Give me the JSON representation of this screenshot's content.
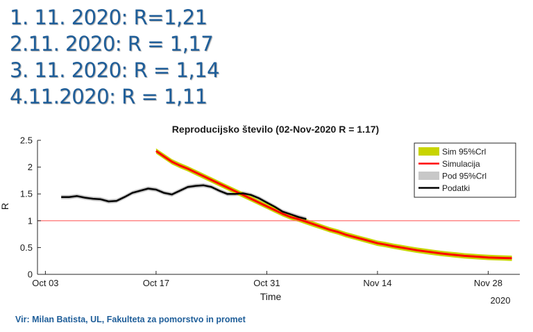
{
  "headlines": [
    "1. 11. 2020: R=1,21",
    "2.11. 2020: R = 1,17",
    "3. 11. 2020: R = 1,14",
    "4.11.2020: R = 1,11"
  ],
  "source_note": "Vir: Milan Batista, UL, Fakulteta za pomorstvo in promet",
  "chart_data": {
    "type": "line",
    "title": "Reproducijsko število (02-Nov-2020 R = 1.17)",
    "xlabel": "Time",
    "ylabel": "R",
    "x_year_label": "2020",
    "x_ticks": [
      "Oct 03",
      "Oct 17",
      "Oct 31",
      "Nov 14",
      "Nov 28"
    ],
    "x_tick_days": [
      3,
      17,
      31,
      45,
      59
    ],
    "x_range_days": [
      2,
      63
    ],
    "y_ticks": [
      "0",
      "0.5",
      "1",
      "1.5",
      "2",
      "2.5"
    ],
    "ylim": [
      0,
      2.5
    ],
    "reference_line": {
      "y": 1,
      "color": "#ff6060"
    },
    "grid": false,
    "legend_position": "top-right",
    "legend": [
      {
        "label": "Sim 95%Crl",
        "color": "#c8d400",
        "kind": "patch"
      },
      {
        "label": "Simulacija",
        "color": "#ff0000",
        "kind": "line"
      },
      {
        "label": "Pod 95%Crl",
        "color": "#c8c8c8",
        "kind": "patch"
      },
      {
        "label": "Podatki",
        "color": "#000000",
        "kind": "line"
      }
    ],
    "series": [
      {
        "name": "Podatki",
        "color": "#000000",
        "band_color": "#c8c8c8",
        "band_halfwidth": 0.04,
        "points": [
          [
            5,
            1.44
          ],
          [
            6,
            1.44
          ],
          [
            7,
            1.46
          ],
          [
            8,
            1.43
          ],
          [
            9,
            1.41
          ],
          [
            10,
            1.4
          ],
          [
            11,
            1.36
          ],
          [
            12,
            1.37
          ],
          [
            13,
            1.44
          ],
          [
            14,
            1.52
          ],
          [
            15,
            1.56
          ],
          [
            16,
            1.6
          ],
          [
            17,
            1.58
          ],
          [
            18,
            1.52
          ],
          [
            19,
            1.49
          ],
          [
            20,
            1.56
          ],
          [
            21,
            1.63
          ],
          [
            22,
            1.65
          ],
          [
            23,
            1.66
          ],
          [
            24,
            1.63
          ],
          [
            25,
            1.56
          ],
          [
            26,
            1.5
          ],
          [
            27,
            1.5
          ],
          [
            28,
            1.51
          ],
          [
            29,
            1.48
          ],
          [
            30,
            1.42
          ],
          [
            31,
            1.34
          ],
          [
            32,
            1.26
          ],
          [
            33,
            1.17
          ],
          [
            34,
            1.12
          ],
          [
            35,
            1.07
          ],
          [
            36,
            1.03
          ]
        ]
      },
      {
        "name": "Simulacija",
        "color": "#ff0000",
        "band_color": "#c8d400",
        "band_halfwidth": 0.05,
        "points": [
          [
            17,
            2.3
          ],
          [
            18,
            2.2
          ],
          [
            19,
            2.1
          ],
          [
            20,
            2.03
          ],
          [
            21,
            1.97
          ],
          [
            22,
            1.9
          ],
          [
            23,
            1.83
          ],
          [
            24,
            1.76
          ],
          [
            25,
            1.69
          ],
          [
            26,
            1.62
          ],
          [
            27,
            1.55
          ],
          [
            28,
            1.48
          ],
          [
            29,
            1.41
          ],
          [
            30,
            1.34
          ],
          [
            31,
            1.27
          ],
          [
            32,
            1.2
          ],
          [
            33,
            1.13
          ],
          [
            34,
            1.07
          ],
          [
            35,
            1.03
          ],
          [
            36,
            0.98
          ],
          [
            37,
            0.93
          ],
          [
            38,
            0.88
          ],
          [
            39,
            0.83
          ],
          [
            40,
            0.79
          ],
          [
            41,
            0.74
          ],
          [
            42,
            0.7
          ],
          [
            43,
            0.66
          ],
          [
            44,
            0.62
          ],
          [
            45,
            0.58
          ],
          [
            46,
            0.555
          ],
          [
            47,
            0.525
          ],
          [
            48,
            0.5
          ],
          [
            49,
            0.475
          ],
          [
            50,
            0.45
          ],
          [
            51,
            0.43
          ],
          [
            52,
            0.41
          ],
          [
            53,
            0.39
          ],
          [
            54,
            0.375
          ],
          [
            55,
            0.36
          ],
          [
            56,
            0.345
          ],
          [
            57,
            0.335
          ],
          [
            58,
            0.325
          ],
          [
            59,
            0.315
          ],
          [
            60,
            0.31
          ],
          [
            61,
            0.305
          ],
          [
            62,
            0.3
          ]
        ]
      }
    ]
  }
}
